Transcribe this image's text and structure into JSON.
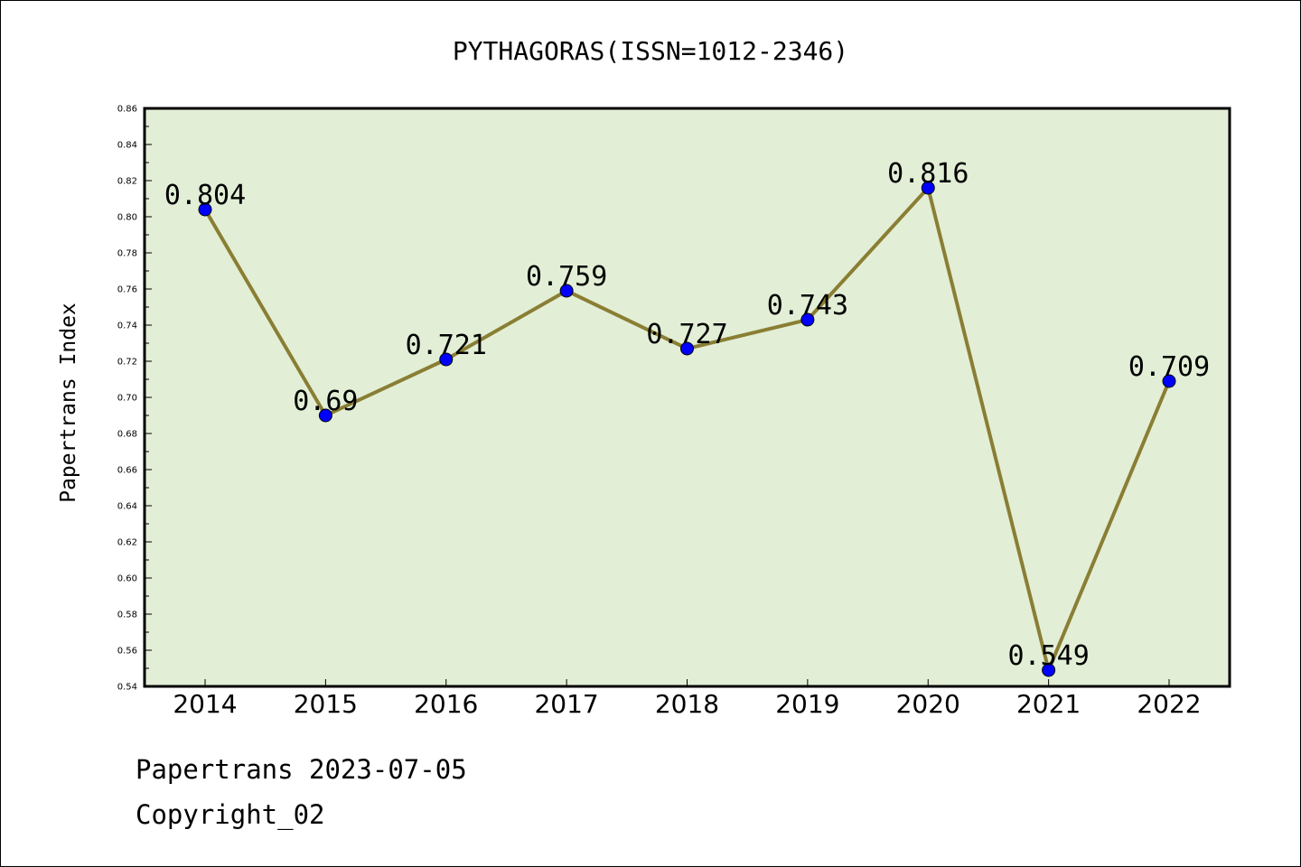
{
  "chart_data": {
    "type": "line",
    "title": "PYTHAGORAS(ISSN=1012-2346)",
    "ylabel": "Papertrans Index",
    "xlabel": "",
    "categories": [
      "2014",
      "2015",
      "2016",
      "2017",
      "2018",
      "2019",
      "2020",
      "2021",
      "2022"
    ],
    "series": [
      {
        "values": [
          0.804,
          0.69,
          0.721,
          0.759,
          0.727,
          0.743,
          0.816,
          0.549,
          0.709
        ]
      }
    ],
    "data_labels": [
      "0.804",
      "0.69",
      "0.721",
      "0.759",
      "0.727",
      "0.743",
      "0.816",
      "0.549",
      "0.709"
    ],
    "ylim": [
      0.54,
      0.86
    ],
    "y_tick_labels": [
      "0.54",
      "0.56",
      "0.58",
      "0.60",
      "0.62",
      "0.64",
      "0.66",
      "0.68",
      "0.70",
      "0.72",
      "0.74",
      "0.76",
      "0.78",
      "0.80",
      "0.82",
      "0.84",
      "0.86"
    ],
    "grid": false,
    "legend": "none",
    "colors": {
      "plot_background": "#e2efd6",
      "line": "#8a7e34",
      "marker": "#0000ff",
      "marker_edge": "#000000",
      "axes": "#000000"
    }
  },
  "footer": {
    "date_line": "Papertrans 2023-07-05",
    "copyright_line": "Copyright_02"
  }
}
